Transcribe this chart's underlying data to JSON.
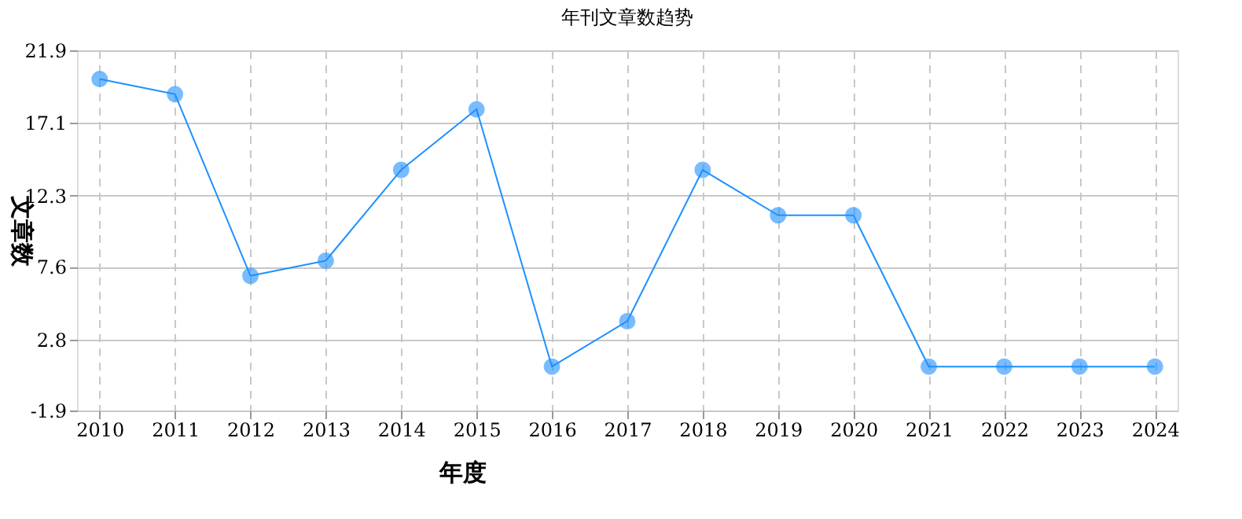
{
  "chart_data": {
    "type": "line",
    "title": "年刊文章数趋势",
    "xlabel": "年度",
    "ylabel": "文章数",
    "categories": [
      "2010",
      "2011",
      "2012",
      "2013",
      "2014",
      "2015",
      "2016",
      "2017",
      "2018",
      "2019",
      "2020",
      "2021",
      "2022",
      "2023",
      "2024"
    ],
    "series": [
      {
        "color": "#1e90ff",
        "values": [
          20,
          19,
          7,
          8,
          14,
          18,
          1,
          4,
          14,
          11,
          11,
          1,
          1,
          1,
          1
        ]
      }
    ],
    "ylim": [
      -1.9,
      21.9
    ],
    "yticks": [
      -1.9,
      2.8,
      7.6,
      12.3,
      17.1,
      21.9
    ],
    "grid": true,
    "marker": "circle",
    "line_style": "solid"
  }
}
